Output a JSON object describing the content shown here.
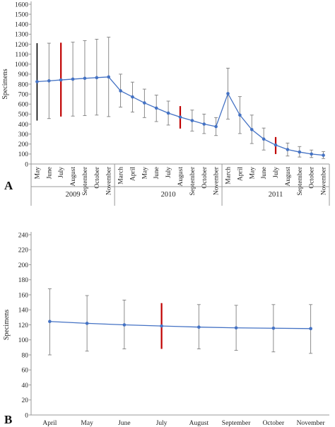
{
  "chart_data": [
    {
      "panel_label": "A",
      "type": "line",
      "ylabel": "Specimens",
      "ylim": [
        0,
        1600
      ],
      "yticks": [
        0,
        100,
        200,
        300,
        400,
        500,
        600,
        700,
        800,
        900,
        1000,
        1100,
        1200,
        1300,
        1400,
        1500,
        1600
      ],
      "grid": false,
      "line_color": "#4472c4",
      "highlight_color": "#c00000",
      "year_groups": [
        {
          "label": "2009",
          "months": [
            "May",
            "June",
            "July",
            "August",
            "September",
            "October",
            "November"
          ]
        },
        {
          "label": "2010",
          "months": [
            "March",
            "April",
            "May",
            "June",
            "July",
            "August",
            "September",
            "October",
            "November"
          ]
        },
        {
          "label": "2011",
          "months": [
            "March",
            "April",
            "May",
            "June",
            "July",
            "August",
            "September",
            "October",
            "November"
          ]
        }
      ],
      "values": [
        825,
        833,
        842,
        850,
        858,
        865,
        872,
        733,
        672,
        612,
        560,
        510,
        470,
        435,
        400,
        375,
        705,
        490,
        345,
        250,
        190,
        145,
        120,
        100,
        88
      ],
      "err_low": [
        435,
        455,
        475,
        480,
        485,
        490,
        475,
        570,
        520,
        465,
        425,
        390,
        355,
        330,
        305,
        285,
        450,
        305,
        205,
        140,
        100,
        80,
        70,
        65,
        55
      ],
      "err_high": [
        1210,
        1210,
        1215,
        1220,
        1235,
        1250,
        1270,
        900,
        820,
        750,
        690,
        630,
        580,
        540,
        500,
        465,
        960,
        675,
        490,
        360,
        270,
        210,
        175,
        140,
        125
      ],
      "error_bar_colors": [
        "#000000",
        "#7f7f7f",
        "#c00000",
        "#7f7f7f",
        "#7f7f7f",
        "#7f7f7f",
        "#7f7f7f",
        "#7f7f7f",
        "#7f7f7f",
        "#7f7f7f",
        "#7f7f7f",
        "#7f7f7f",
        "#c00000",
        "#7f7f7f",
        "#7f7f7f",
        "#7f7f7f",
        "#7f7f7f",
        "#7f7f7f",
        "#7f7f7f",
        "#7f7f7f",
        "#c00000",
        "#7f7f7f",
        "#7f7f7f",
        "#7f7f7f",
        "#7f7f7f"
      ]
    },
    {
      "panel_label": "B",
      "type": "line",
      "ylabel": "Specimens",
      "ylim": [
        0,
        240
      ],
      "yticks": [
        0,
        20,
        40,
        60,
        80,
        100,
        120,
        140,
        160,
        180,
        200,
        220,
        240
      ],
      "grid": false,
      "line_color": "#4472c4",
      "categories": [
        "April",
        "May",
        "June",
        "July",
        "August",
        "September",
        "October",
        "November"
      ],
      "values": [
        124.5,
        122,
        120,
        118.5,
        117,
        116,
        115.5,
        115
      ],
      "err_low": [
        80,
        85,
        88,
        88,
        88,
        86,
        84,
        82
      ],
      "err_high": [
        168,
        159,
        153,
        149,
        147,
        146,
        147,
        147
      ],
      "error_bar_colors": [
        "#7f7f7f",
        "#7f7f7f",
        "#7f7f7f",
        "#c00000",
        "#7f7f7f",
        "#7f7f7f",
        "#7f7f7f",
        "#7f7f7f"
      ]
    }
  ]
}
